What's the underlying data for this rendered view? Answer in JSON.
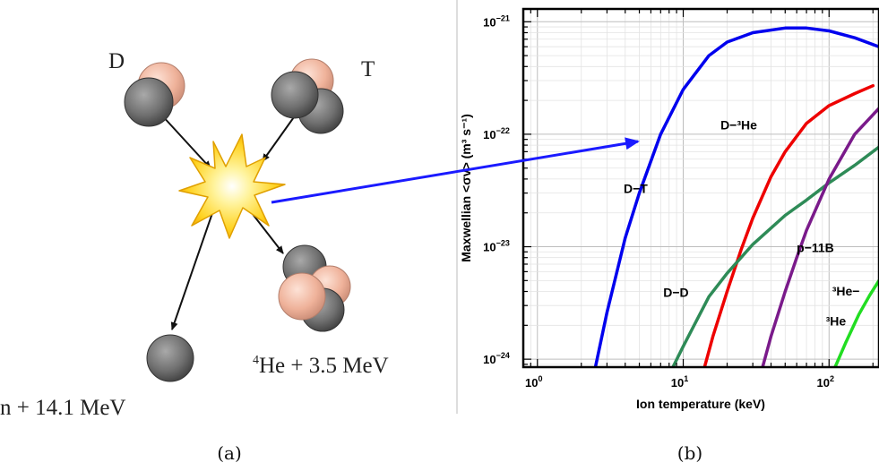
{
  "panel_a": {
    "caption": "(a)",
    "label_d": "D",
    "label_t": "T",
    "label_n": "n + 14.1 MeV",
    "label_he_sup": "4",
    "label_he": "He + 3.5 MeV"
  },
  "panel_b": {
    "caption": "(b)"
  },
  "colors": {
    "neutron": "#6e6e6e",
    "proton": "#f2b9a0",
    "star": "#ffd21f",
    "arrow": "#1a1aff"
  },
  "chart_data": {
    "type": "line",
    "xlabel": "Ion temperature (keV)",
    "ylabel": "Maxwellian <σv> (m³ s⁻¹)",
    "xscale": "log",
    "yscale": "log",
    "xlim": [
      0.8,
      220
    ],
    "ylim": [
      8.5e-25,
      1.3e-21
    ],
    "grid": true,
    "x_ticks": [
      {
        "value": 1,
        "label": "10",
        "exp": "0"
      },
      {
        "value": 10,
        "label": "10",
        "exp": "1"
      },
      {
        "value": 100,
        "label": "10",
        "exp": "2"
      }
    ],
    "y_ticks": [
      {
        "value": 1e-24,
        "label": "10",
        "exp": "−24"
      },
      {
        "value": 1e-23,
        "label": "10",
        "exp": "−23"
      },
      {
        "value": 1e-22,
        "label": "10",
        "exp": "−22"
      },
      {
        "value": 1e-21,
        "label": "10",
        "exp": "−21"
      }
    ],
    "series": [
      {
        "name": "D−T",
        "color": "#0000ee",
        "x": [
          2.5,
          3,
          4,
          5,
          7,
          10,
          15,
          20,
          30,
          50,
          70,
          100,
          150,
          220
        ],
        "y": [
          8.5e-25,
          2.6e-24,
          1.2e-23,
          3e-23,
          1e-22,
          2.5e-22,
          5e-22,
          6.6e-22,
          8e-22,
          8.8e-22,
          8.8e-22,
          8.3e-22,
          7.2e-22,
          6e-22
        ]
      },
      {
        "name": "D−³He",
        "color": "#ee0000",
        "x": [
          14,
          16,
          20,
          25,
          30,
          40,
          50,
          70,
          100,
          150,
          200
        ],
        "y": [
          8.5e-25,
          1.6e-24,
          4e-24,
          9.5e-24,
          1.8e-23,
          4.2e-23,
          7e-23,
          1.25e-22,
          1.8e-22,
          2.3e-22,
          2.7e-22
        ]
      },
      {
        "name": "D−D",
        "color": "#2e8b57",
        "x": [
          8.5,
          10,
          15,
          20,
          30,
          50,
          70,
          100,
          150,
          220
        ],
        "y": [
          8.5e-25,
          1.3e-24,
          3.6e-24,
          5.8e-24,
          1.05e-23,
          1.9e-23,
          2.6e-23,
          3.7e-23,
          5.3e-23,
          7.7e-23
        ]
      },
      {
        "name": "p−11B",
        "color": "#7a1a8a",
        "x": [
          35,
          40,
          50,
          60,
          70,
          100,
          150,
          220
        ],
        "y": [
          8.5e-25,
          1.6e-24,
          4e-24,
          8e-24,
          1.4e-23,
          4e-23,
          1e-22,
          1.7e-22
        ]
      },
      {
        "name": "³He−³He",
        "color": "#22dd22",
        "x": [
          110,
          130,
          160,
          190,
          220
        ],
        "y": [
          8.5e-25,
          1.4e-24,
          2.5e-24,
          3.7e-24,
          5e-24
        ]
      }
    ],
    "annotations": [
      {
        "text": "D−T",
        "x": 3.9,
        "y": 3e-23
      },
      {
        "text": "D−³He",
        "x": 18,
        "y": 1.1e-22
      },
      {
        "text": "D−D",
        "x": 7.3,
        "y": 3.6e-24
      },
      {
        "text": "p−11B",
        "x": 60,
        "y": 9e-24
      },
      {
        "text": "³He−",
        "x": 105,
        "y": 3.7e-24
      },
      {
        "text": "³He",
        "x": 95,
        "y": 2e-24
      }
    ]
  }
}
